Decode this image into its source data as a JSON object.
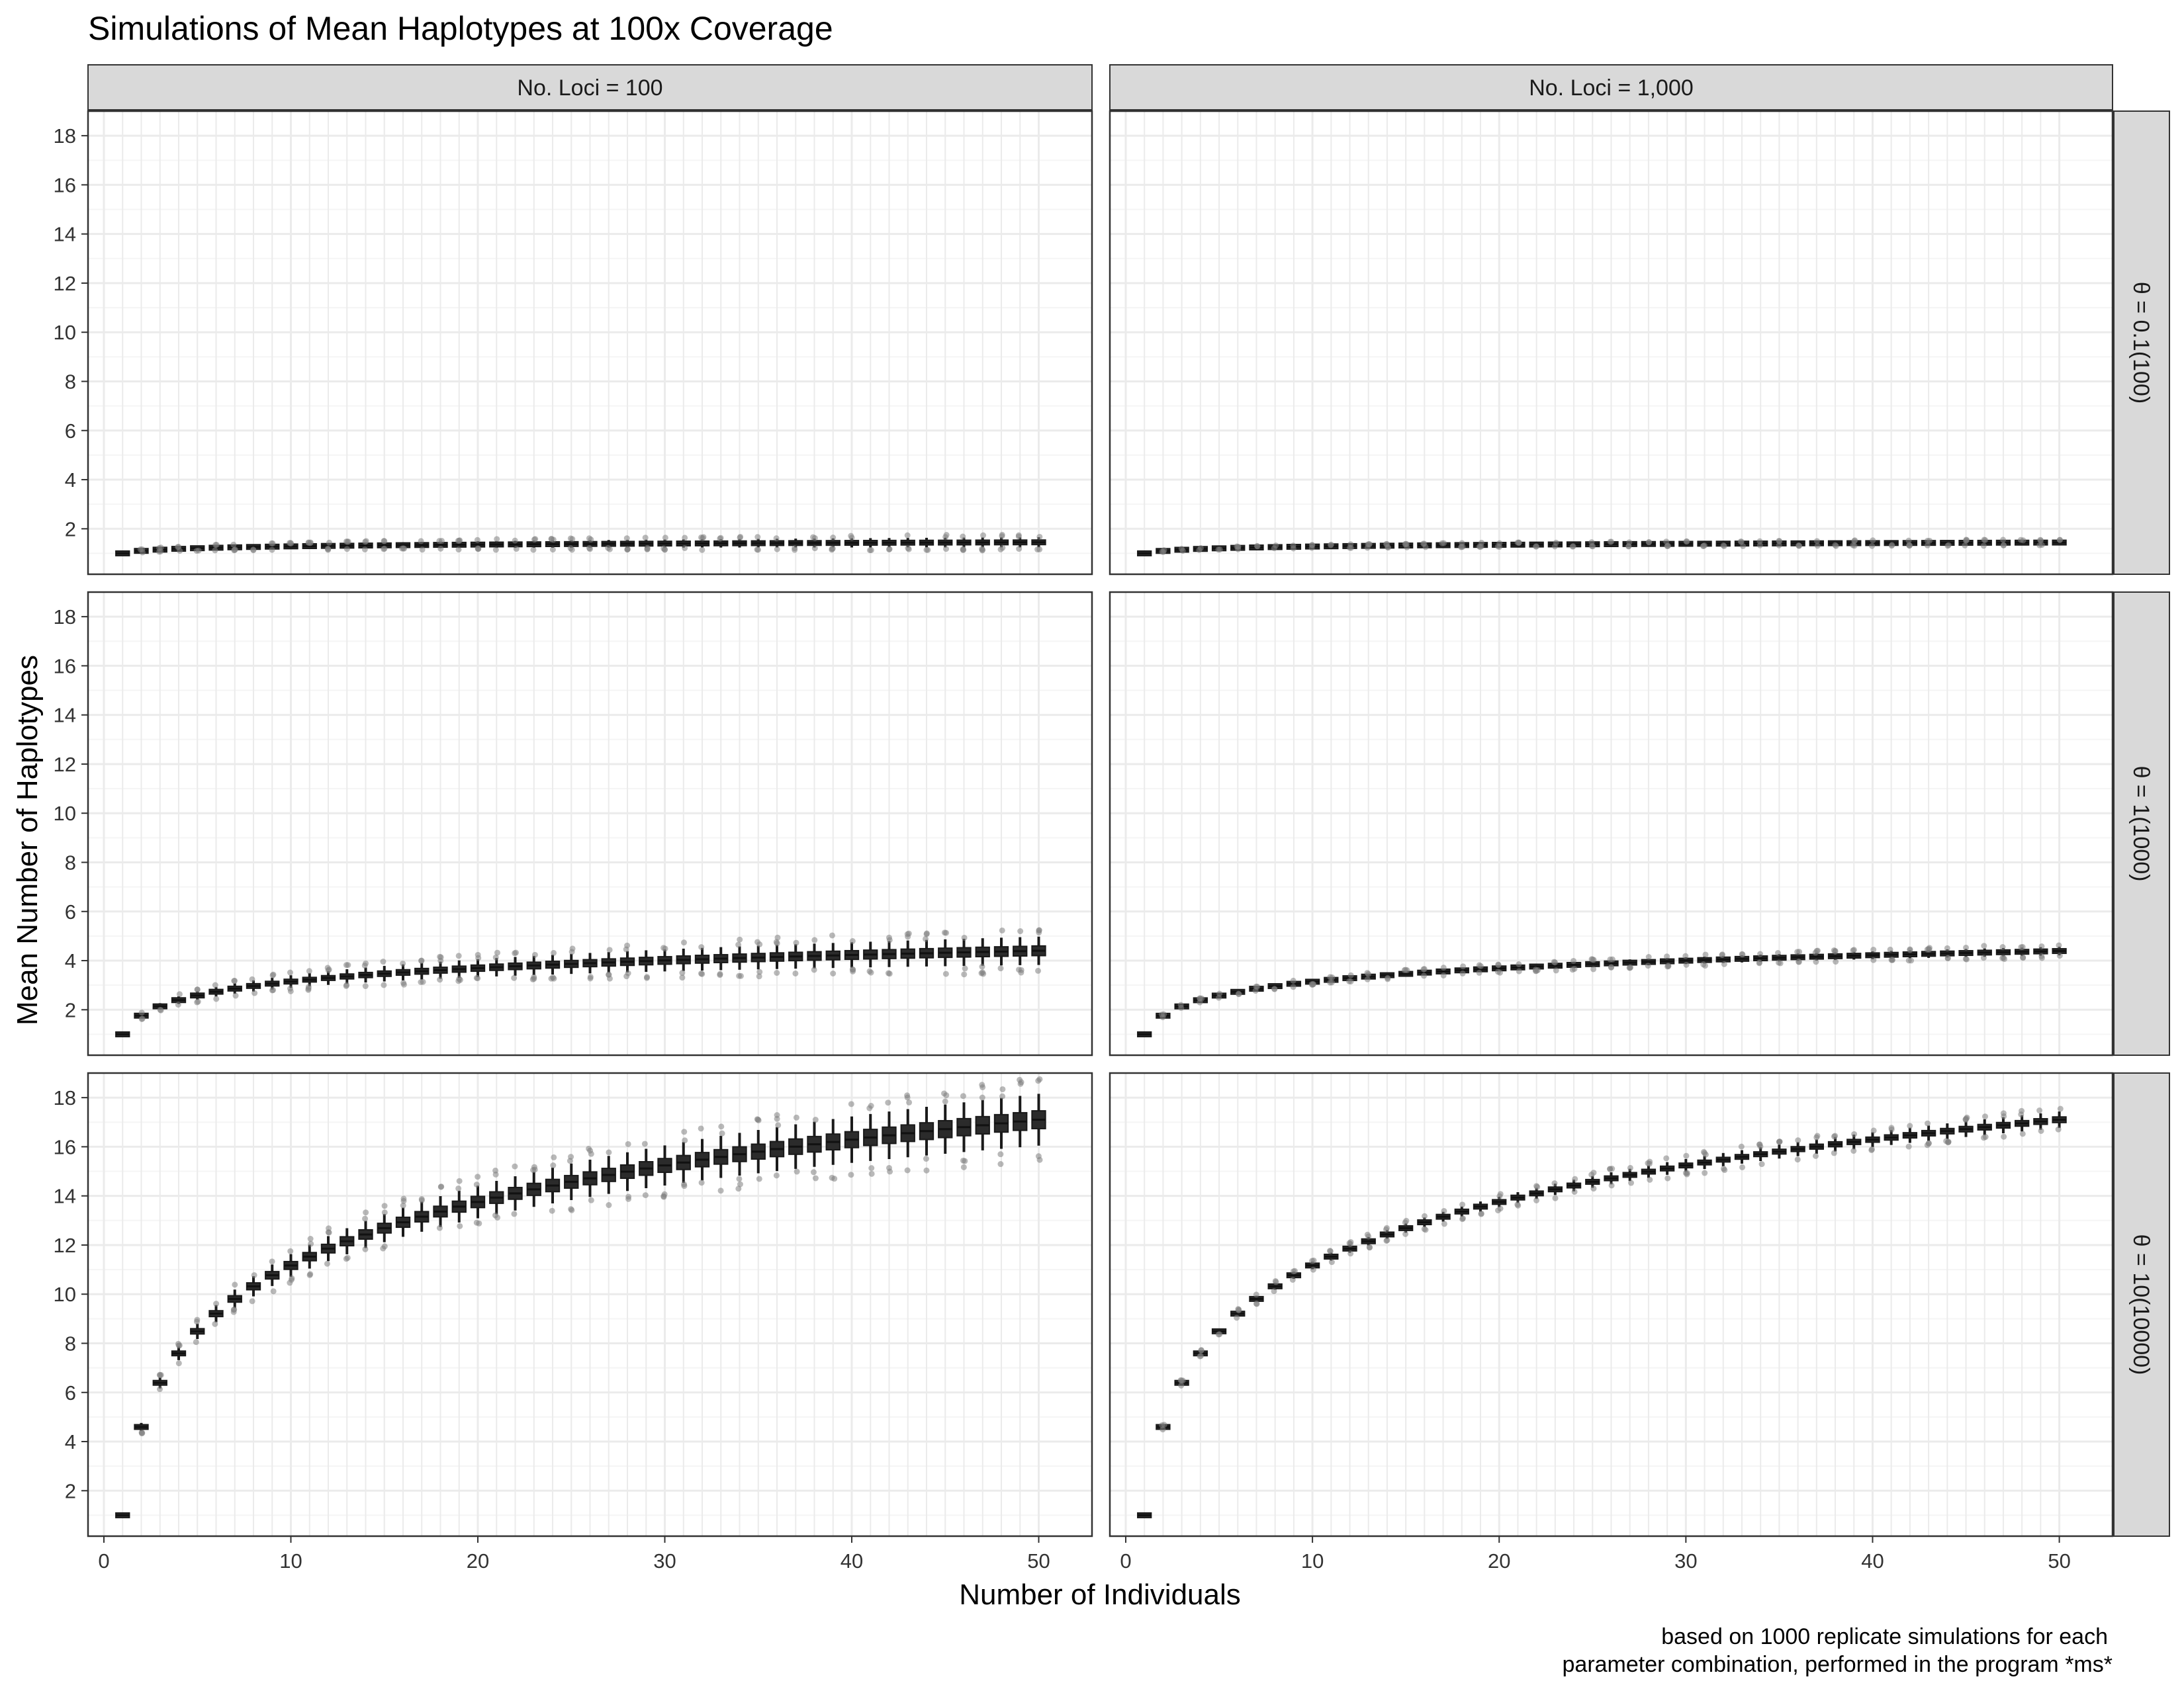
{
  "chart_data": {
    "type": "boxplot",
    "title": "Simulations of Mean Haplotypes at 100x Coverage",
    "xlabel": "Number of Individuals",
    "ylabel": "Mean Number of Haplotypes",
    "caption": [
      "based on 1000 replicate simulations for each",
      "parameter combination, performed in the program *ms*"
    ],
    "columns": [
      "No. Loci = 100",
      "No. Loci = 1,000"
    ],
    "rows": [
      "θ = 0.1(100)",
      "θ = 1(1000)",
      "θ = 10(10000)"
    ],
    "x_range": [
      1,
      50
    ],
    "xlim": [
      -0.85,
      52.85
    ],
    "x_ticks": [
      0,
      10,
      20,
      30,
      40,
      50
    ],
    "ylim": [
      0.15,
      19.0
    ],
    "y_ticks": [
      2,
      4,
      6,
      8,
      10,
      12,
      14,
      16,
      18
    ],
    "grid": true,
    "panels": [
      {
        "row": 0,
        "col": 0,
        "theta": 0.1,
        "loci": 100,
        "median_at_x50": 1.45,
        "spread_at_x50": 0.12
      },
      {
        "row": 0,
        "col": 1,
        "theta": 0.1,
        "loci": 1000,
        "median_at_x50": 1.44,
        "spread_at_x50": 0.04
      },
      {
        "row": 1,
        "col": 0,
        "theta": 1,
        "loci": 100,
        "median_at_x50": 4.4,
        "spread_at_x50": 0.35
      },
      {
        "row": 1,
        "col": 1,
        "theta": 1,
        "loci": 1000,
        "median_at_x50": 4.39,
        "spread_at_x50": 0.1
      },
      {
        "row": 2,
        "col": 0,
        "theta": 10,
        "loci": 100,
        "median_at_x50": 17.1,
        "spread_at_x50": 0.65
      },
      {
        "row": 2,
        "col": 1,
        "theta": 10,
        "loci": 1000,
        "median_at_x50": 17.1,
        "spread_at_x50": 0.2
      }
    ],
    "median_model": "median(n) = 1 + (median_at_x50 - 1) * H(n-1) / H(49), H = harmonic number",
    "colors": {
      "box_fill": "#2b2b2b",
      "box_edge": "#1a1a1a",
      "outlier": "#7f7f7f",
      "grid_major": "#ebebeb",
      "grid_minor": "#f5f5f5",
      "strip_fill": "#d9d9d9",
      "panel_border": "#333333"
    }
  }
}
